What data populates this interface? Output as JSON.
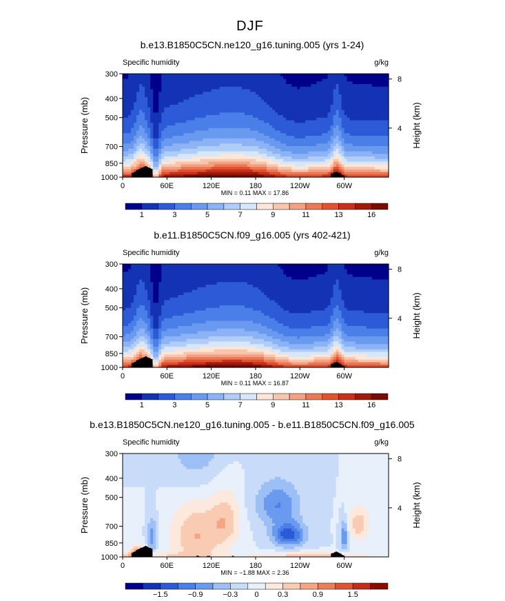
{
  "figure": {
    "title": "DJF"
  },
  "chart_data": [
    {
      "type": "heatmap",
      "title": "b.e13.B1850C5CN.ne120_g16.tuning.005 (yrs 1-24)",
      "field_label": "Specific humidity",
      "units": "g/kg",
      "ylabel": "Pressure (mb)",
      "ylabel_right": "Height (km)",
      "x_ticks": [
        "0",
        "60E",
        "120E",
        "180",
        "120W",
        "60W"
      ],
      "y_ticks": [
        "300",
        "400",
        "500",
        "700",
        "850",
        "1000"
      ],
      "y_ticks_right": [
        "8",
        "4"
      ],
      "min_text": "MIN =    0.11  MAX =   17.86",
      "min": 0.11,
      "max": 17.86,
      "colorbar_labels": [
        "1",
        "3",
        "5",
        "7",
        "9",
        "11",
        "13",
        "16"
      ],
      "colorbar_colors": [
        "#00008b",
        "#1432b4",
        "#2d5ad6",
        "#4a7fe8",
        "#6a9af0",
        "#8cb3f5",
        "#b0cdf8",
        "#d6e6fb",
        "#fbe6d8",
        "#f8c6ae",
        "#f2a283",
        "#ea7a57",
        "#e05230",
        "#c8301a",
        "#a01a0c",
        "#7a0a04"
      ]
    },
    {
      "type": "heatmap",
      "title": "b.e11.B1850C5CN.f09_g16.005 (yrs 402-421)",
      "field_label": "Specific humidity",
      "units": "g/kg",
      "ylabel": "Pressure (mb)",
      "ylabel_right": "Height (km)",
      "x_ticks": [
        "0",
        "60E",
        "120E",
        "180",
        "120W",
        "60W"
      ],
      "y_ticks": [
        "300",
        "400",
        "500",
        "700",
        "850",
        "1000"
      ],
      "y_ticks_right": [
        "8",
        "4"
      ],
      "min_text": "MIN =    0.11  MAX =   16.87",
      "min": 0.11,
      "max": 16.87,
      "colorbar_labels": [
        "1",
        "3",
        "5",
        "7",
        "9",
        "11",
        "13",
        "16"
      ],
      "colorbar_colors": [
        "#00008b",
        "#1432b4",
        "#2d5ad6",
        "#4a7fe8",
        "#6a9af0",
        "#8cb3f5",
        "#b0cdf8",
        "#d6e6fb",
        "#fbe6d8",
        "#f8c6ae",
        "#f2a283",
        "#ea7a57",
        "#e05230",
        "#c8301a",
        "#a01a0c",
        "#7a0a04"
      ]
    },
    {
      "type": "heatmap",
      "title": "b.e13.B1850C5CN.ne120_g16.tuning.005 - b.e11.B1850C5CN.f09_g16.005",
      "field_label": "Specific humidity",
      "units": "g/kg",
      "ylabel": "Pressure (mb)",
      "ylabel_right": "Height (km)",
      "x_ticks": [
        "0",
        "60E",
        "120E",
        "180",
        "120W",
        "60W"
      ],
      "y_ticks": [
        "300",
        "400",
        "500",
        "700",
        "850",
        "1000"
      ],
      "y_ticks_right": [
        "8",
        "4"
      ],
      "min_text": "MIN =   −1.88  MAX =    2.36",
      "min": -1.88,
      "max": 2.36,
      "colorbar_labels": [
        "−1.5",
        "−0.9",
        "−0.3",
        "0",
        "0.3",
        "0.9",
        "1.5"
      ],
      "colorbar_colors": [
        "#00008b",
        "#1432b4",
        "#2d5ad6",
        "#4a7fe8",
        "#6a9af0",
        "#9cbff6",
        "#c8dcfa",
        "#e8f0fc",
        "#fce8dc",
        "#f9cbb2",
        "#f4a583",
        "#ec7d58",
        "#e05230",
        "#c42d18",
        "#8a0c04"
      ]
    }
  ]
}
